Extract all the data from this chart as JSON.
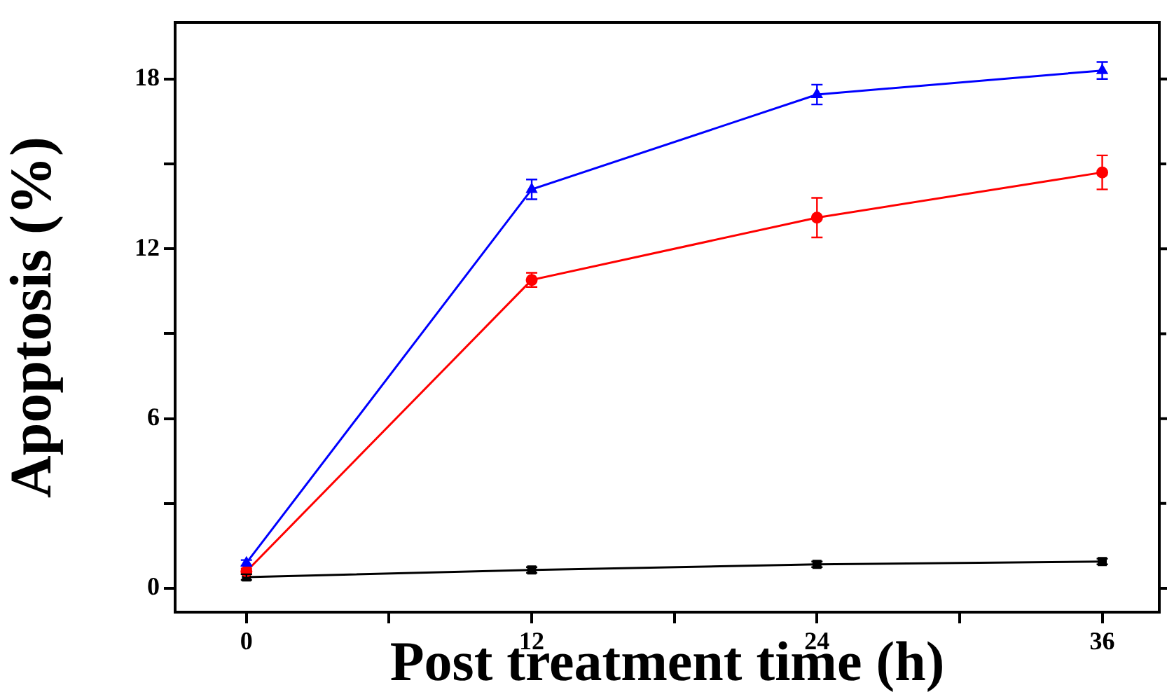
{
  "chart_data": {
    "type": "line",
    "xlabel": "Post treatment time (h)",
    "ylabel": "Apoptosis (%)",
    "x": [
      0,
      12,
      24,
      36
    ],
    "xlim": [
      -3,
      38.4
    ],
    "ylim": [
      -0.84,
      20
    ],
    "xticks": [
      0,
      {
        "value": 6,
        "label": null
      },
      12,
      {
        "value": 18,
        "label": null
      },
      24,
      {
        "value": 30,
        "label": null
      },
      36
    ],
    "yticks": [
      0,
      {
        "value": 3,
        "label": null
      },
      6,
      {
        "value": 9,
        "label": null
      },
      12,
      {
        "value": 15,
        "label": null
      },
      18
    ],
    "grid": false,
    "legend": false,
    "line_style": "solid",
    "series": [
      {
        "color": "#0000ff",
        "marker": "triangle",
        "values": [
          0.9,
          14.1,
          17.45,
          18.3
        ],
        "errors": [
          0.1,
          0.35,
          0.35,
          0.3
        ]
      },
      {
        "color": "#ff0000",
        "marker": "circle",
        "values": [
          0.6,
          10.9,
          13.1,
          14.7
        ],
        "errors": [
          0.1,
          0.25,
          0.7,
          0.6
        ]
      },
      {
        "color": "#000000",
        "marker": "square",
        "values": [
          0.4,
          0.65,
          0.85,
          0.95
        ],
        "errors": [
          0.1,
          0.1,
          0.1,
          0.1
        ]
      }
    ]
  }
}
